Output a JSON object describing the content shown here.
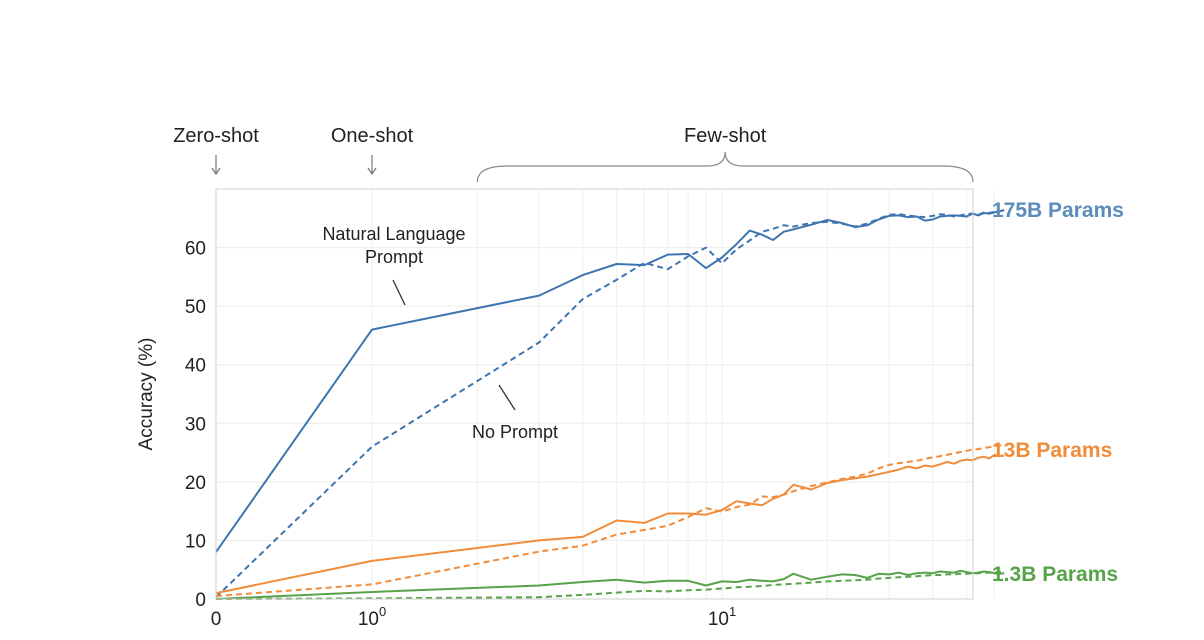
{
  "chart_data": {
    "type": "line",
    "ylabel": "Accuracy (%)",
    "x_scale": "log",
    "ylim": [
      0,
      70
    ],
    "yticks": [
      0,
      10,
      20,
      30,
      40,
      50,
      60
    ],
    "xtick_labels": [
      {
        "value": 0,
        "base": "0",
        "exp": ""
      },
      {
        "value": 1,
        "base": "10",
        "exp": "0"
      },
      {
        "value": 10,
        "base": "10",
        "exp": "1"
      }
    ],
    "grid": true,
    "region_labels": [
      {
        "text": "Zero-shot",
        "kind": "arrow",
        "x": 0
      },
      {
        "text": "One-shot",
        "kind": "arrow",
        "x": 1
      },
      {
        "text": "Few-shot",
        "kind": "brace",
        "x_from": 2,
        "x_to": 64
      }
    ],
    "legend": [
      {
        "text": "175B Params",
        "color": "#5b8dbc",
        "y": 66.4
      },
      {
        "text": "13B Params",
        "color": "#f08c3a",
        "y": 25.2
      },
      {
        "text": "1.3B Params",
        "color": "#58a24a",
        "y": 4.4
      }
    ],
    "annotations": [
      {
        "lines": [
          "Natural Language",
          "Prompt"
        ],
        "series": "175B prompt",
        "x": 3.5,
        "y": 60
      },
      {
        "lines": [
          "No Prompt"
        ],
        "series": "175B no prompt",
        "x": 4.5,
        "y": 28.5
      }
    ],
    "series": [
      {
        "model": "175B",
        "variant": "natural language prompt",
        "style": "solid",
        "color": "#3e75b0",
        "x": [
          0,
          1,
          3,
          4,
          5,
          6,
          7,
          8,
          9,
          10,
          11,
          12,
          13,
          14,
          15,
          16,
          18,
          20,
          22,
          24,
          26,
          28,
          30,
          32,
          34,
          36,
          38,
          40,
          42,
          44,
          46,
          48,
          50,
          52,
          54,
          56,
          58,
          60,
          62,
          64
        ],
        "y": [
          8,
          46,
          51.8,
          55.3,
          57.2,
          57,
          58.8,
          58.9,
          56.5,
          58.3,
          60.6,
          62.9,
          62.2,
          61.3,
          62.7,
          63.1,
          63.9,
          64.7,
          64.2,
          63.5,
          63.8,
          64.8,
          65.4,
          65.5,
          65.2,
          65.3,
          64.6,
          64.8,
          65.3,
          65.4,
          65.5,
          65.4,
          65.3,
          65.8,
          65.5,
          65.9,
          65.8,
          66,
          66.2,
          66.4
        ]
      },
      {
        "model": "175B",
        "variant": "no prompt",
        "style": "dashed",
        "color": "#3e75b0",
        "x": [
          0,
          1,
          3,
          4,
          5,
          6,
          7,
          8,
          9,
          10,
          11,
          12,
          13,
          14,
          15,
          16,
          18,
          20,
          22,
          24,
          26,
          28,
          30,
          32,
          34,
          36,
          38,
          40,
          42,
          44,
          46,
          48,
          50,
          52,
          54,
          56,
          58,
          60,
          62,
          64
        ],
        "y": [
          0.3,
          26,
          43.8,
          51.2,
          54.5,
          57.4,
          56.3,
          58.5,
          60,
          57.3,
          59.7,
          61.2,
          62.7,
          63.2,
          63.8,
          63.6,
          64.2,
          64.4,
          64.1,
          63.6,
          64.1,
          64.9,
          65.6,
          65.7,
          65.5,
          65.3,
          65.2,
          65.4,
          65.7,
          65.6,
          65.3,
          65.5,
          65.7,
          65.8,
          65.6,
          66,
          65.9,
          66.1,
          66.2,
          66.4
        ]
      },
      {
        "model": "13B",
        "variant": "natural language prompt",
        "style": "solid",
        "color": "#f08c3a",
        "x": [
          0,
          1,
          3,
          4,
          5,
          6,
          7,
          8,
          9,
          10,
          11,
          12,
          13,
          14,
          15,
          16,
          18,
          20,
          22,
          24,
          26,
          28,
          30,
          32,
          34,
          36,
          38,
          40,
          42,
          44,
          46,
          48,
          50,
          52,
          54,
          56,
          58,
          60,
          62,
          64
        ],
        "y": [
          1,
          6.5,
          10,
          10.6,
          13.4,
          13,
          14.6,
          14.6,
          14.4,
          15.2,
          16.7,
          16.3,
          16,
          17.1,
          17.8,
          19.5,
          18.7,
          19.8,
          20.3,
          20.6,
          20.9,
          21.3,
          21.7,
          22.1,
          22.6,
          22.3,
          22.8,
          22.6,
          23,
          23.4,
          23.1,
          23.6,
          23.8,
          23.7,
          24.1,
          24.3,
          24,
          24.6,
          24.4,
          24.5
        ]
      },
      {
        "model": "13B",
        "variant": "no prompt",
        "style": "dashed",
        "color": "#f08c3a",
        "x": [
          0,
          1,
          3,
          4,
          5,
          6,
          7,
          8,
          9,
          10,
          11,
          12,
          13,
          14,
          15,
          16,
          18,
          20,
          22,
          24,
          26,
          28,
          30,
          32,
          34,
          36,
          38,
          40,
          42,
          44,
          46,
          48,
          50,
          52,
          54,
          56,
          58,
          60,
          62,
          64
        ],
        "y": [
          0.5,
          2.5,
          8.1,
          9.1,
          11,
          11.8,
          12.5,
          14,
          15.5,
          14.9,
          15.7,
          16.1,
          17.5,
          17.4,
          17.8,
          18.4,
          19.3,
          19.9,
          20.5,
          20.9,
          21.4,
          22.3,
          22.9,
          23.2,
          23.4,
          23.6,
          23.9,
          24.2,
          24.4,
          24.6,
          24.9,
          25.1,
          25.3,
          25.5,
          25.6,
          25.8,
          25.9,
          26.1,
          26.2,
          26.3
        ]
      },
      {
        "model": "1.3B",
        "variant": "natural language prompt",
        "style": "solid",
        "color": "#58a24a",
        "x": [
          0,
          1,
          3,
          4,
          5,
          6,
          7,
          8,
          9,
          10,
          11,
          12,
          13,
          14,
          15,
          16,
          18,
          20,
          22,
          24,
          26,
          28,
          30,
          32,
          34,
          36,
          38,
          40,
          42,
          44,
          46,
          48,
          50,
          52,
          54,
          56,
          58,
          60,
          62,
          64
        ],
        "y": [
          0,
          1.2,
          2.3,
          2.9,
          3.3,
          2.8,
          3.1,
          3.1,
          2.3,
          3,
          2.9,
          3.3,
          3.1,
          3,
          3.4,
          4.3,
          3.3,
          3.8,
          4.2,
          4.1,
          3.6,
          4.3,
          4.2,
          4.5,
          4.1,
          4.4,
          4.5,
          4.4,
          4.7,
          4.6,
          4.5,
          4.8,
          4.6,
          4.4,
          4.5,
          4.7,
          4.6,
          4.4,
          4.3,
          4.4
        ]
      },
      {
        "model": "1.3B",
        "variant": "no prompt",
        "style": "dashed",
        "color": "#58a24a",
        "x": [
          0,
          1,
          3,
          4,
          5,
          6,
          7,
          8,
          9,
          10,
          11,
          12,
          13,
          14,
          15,
          16,
          18,
          20,
          22,
          24,
          26,
          28,
          30,
          32,
          34,
          36,
          38,
          40,
          42,
          44,
          46,
          48,
          50,
          52,
          54,
          56,
          58,
          60,
          62,
          64
        ],
        "y": [
          0,
          0.1,
          0.3,
          0.7,
          1.1,
          1.4,
          1.3,
          1.5,
          1.6,
          1.8,
          2,
          2.1,
          2.2,
          2.4,
          2.5,
          2.6,
          2.8,
          3,
          3.1,
          3.2,
          3.3,
          3.5,
          3.6,
          3.7,
          3.8,
          3.9,
          4,
          4.1,
          4.1,
          4.2,
          4.2,
          4.3,
          4.3,
          4.4,
          4.4,
          4.5,
          4.5,
          4.5,
          4.6,
          4.6
        ]
      }
    ]
  }
}
